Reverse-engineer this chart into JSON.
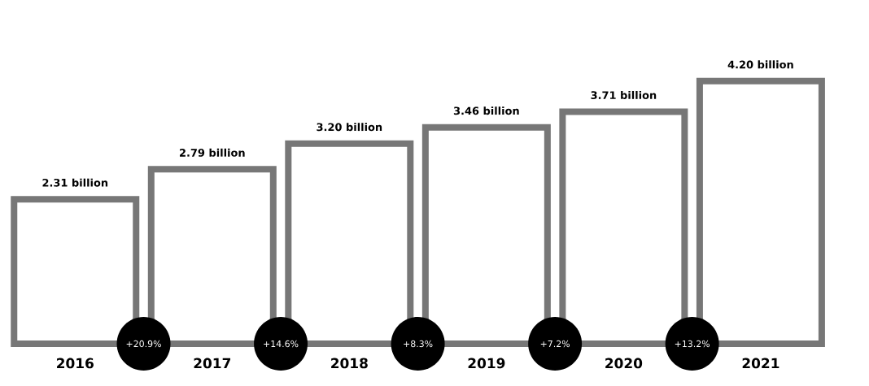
{
  "chart_data": {
    "type": "bar",
    "categories": [
      "2016",
      "2017",
      "2018",
      "2019",
      "2020",
      "2021"
    ],
    "values": [
      2.31,
      2.79,
      3.2,
      3.46,
      3.71,
      4.2
    ],
    "value_labels": [
      "2.31 billion",
      "2.79 billion",
      "3.20 billion",
      "3.46 billion",
      "3.71 billion",
      "4.20 billion"
    ],
    "color": "#777777",
    "annotations": [
      "+20.9%",
      "+14.6%",
      "+8.3%",
      "+7.2%",
      "+13.2%"
    ]
  }
}
